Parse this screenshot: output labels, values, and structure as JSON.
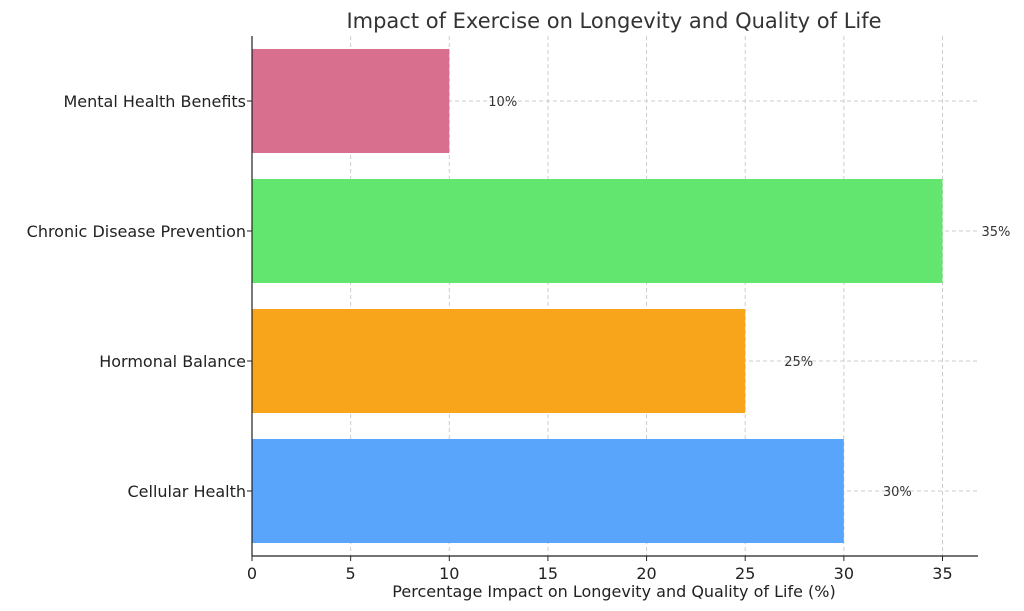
{
  "chart_data": {
    "type": "bar",
    "orientation": "horizontal",
    "title": "Impact of Exercise on Longevity and Quality of Life",
    "xlabel": "Percentage Impact on Longevity and Quality of Life (%)",
    "ylabel": "",
    "categories": [
      "Cellular Health",
      "Hormonal Balance",
      "Chronic Disease Prevention",
      "Mental Health Benefits"
    ],
    "values": [
      30,
      25,
      35,
      10
    ],
    "data_labels": [
      "30%",
      "25%",
      "35%",
      "10%"
    ],
    "colors": [
      "#5aa5fc",
      "#f8a51b",
      "#63e66f",
      "#d86f8f"
    ],
    "xlim": [
      0,
      36.8
    ],
    "xticks": [
      0,
      5,
      10,
      15,
      20,
      25,
      30,
      35
    ],
    "grid": true
  }
}
